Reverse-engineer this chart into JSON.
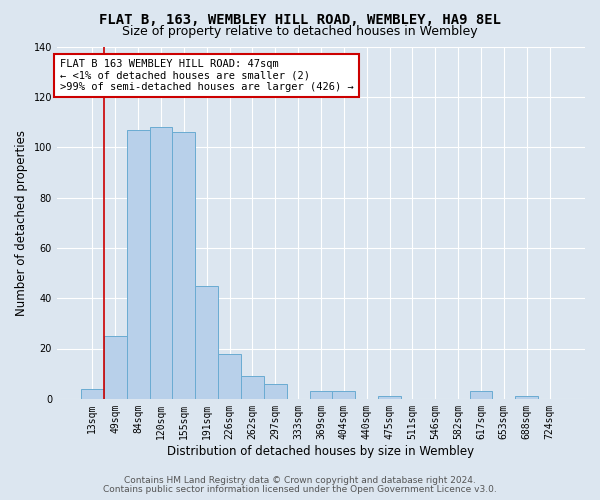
{
  "title": "FLAT B, 163, WEMBLEY HILL ROAD, WEMBLEY, HA9 8EL",
  "subtitle": "Size of property relative to detached houses in Wembley",
  "xlabel": "Distribution of detached houses by size in Wembley",
  "ylabel": "Number of detached properties",
  "categories": [
    "13sqm",
    "49sqm",
    "84sqm",
    "120sqm",
    "155sqm",
    "191sqm",
    "226sqm",
    "262sqm",
    "297sqm",
    "333sqm",
    "369sqm",
    "404sqm",
    "440sqm",
    "475sqm",
    "511sqm",
    "546sqm",
    "582sqm",
    "617sqm",
    "653sqm",
    "688sqm",
    "724sqm"
  ],
  "values": [
    4,
    25,
    107,
    108,
    106,
    45,
    18,
    9,
    6,
    0,
    3,
    3,
    0,
    1,
    0,
    0,
    0,
    3,
    0,
    1,
    0
  ],
  "bar_color": "#b8d0ea",
  "bar_edge_color": "#6aabd2",
  "background_color": "#dce6f0",
  "annotation_line1": "FLAT B 163 WEMBLEY HILL ROAD: 47sqm",
  "annotation_line2": "← <1% of detached houses are smaller (2)",
  "annotation_line3": ">99% of semi-detached houses are larger (426) →",
  "annotation_box_color": "#ffffff",
  "annotation_box_edge_color": "#cc0000",
  "vline_color": "#cc0000",
  "ylim": [
    0,
    140
  ],
  "yticks": [
    0,
    20,
    40,
    60,
    80,
    100,
    120,
    140
  ],
  "footer1": "Contains HM Land Registry data © Crown copyright and database right 2024.",
  "footer2": "Contains public sector information licensed under the Open Government Licence v3.0.",
  "grid_color": "#ffffff",
  "title_fontsize": 10,
  "subtitle_fontsize": 9,
  "tick_fontsize": 7,
  "label_fontsize": 8.5,
  "annotation_fontsize": 7.5
}
